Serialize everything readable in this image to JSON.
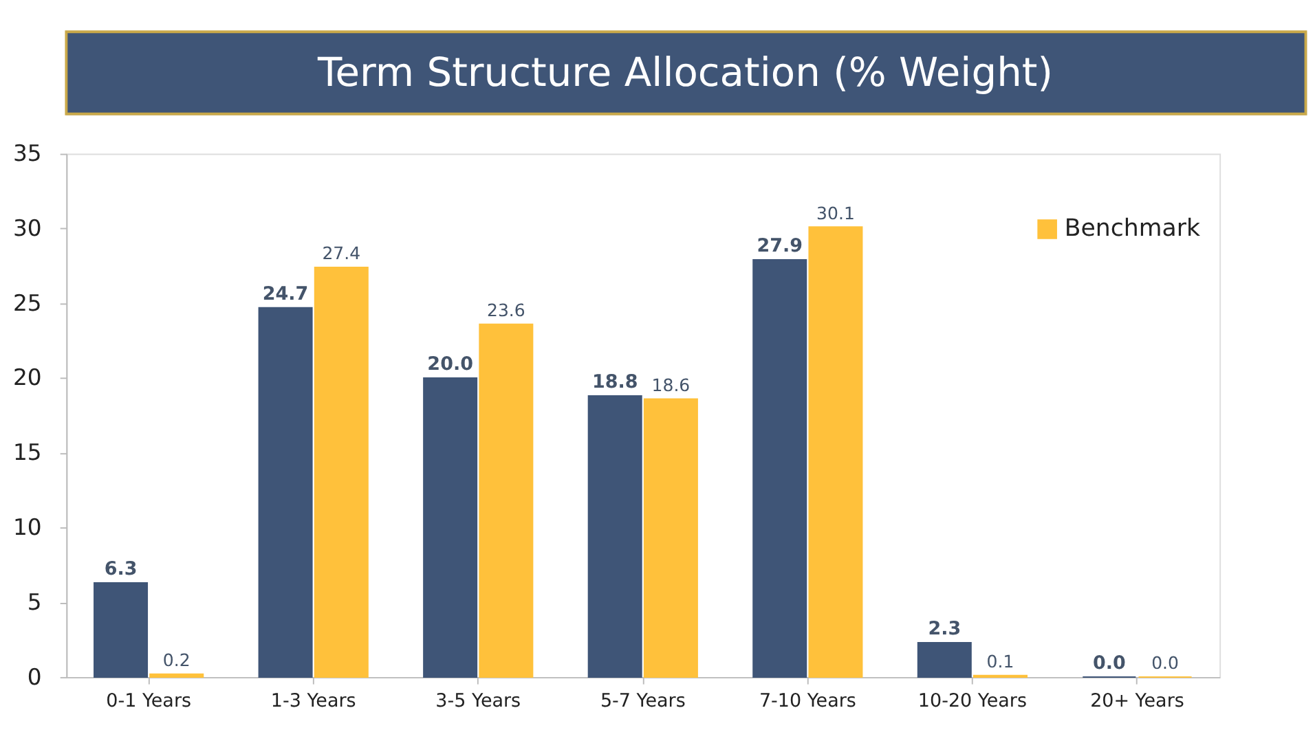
{
  "chart_data": {
    "type": "bar",
    "title": "Term Structure Allocation (% Weight)",
    "categories": [
      "0-1 Years",
      "1-3 Years",
      "3-5 Years",
      "5-7 Years",
      "7-10 Years",
      "10-20 Years",
      "20+ Years"
    ],
    "series": [
      {
        "color": "#3f5577",
        "values": [
          6.3,
          24.7,
          20.0,
          18.8,
          27.9,
          2.3,
          0.0
        ],
        "value_labels": [
          "6.3",
          "24.7",
          "20.0",
          "18.8",
          "27.9",
          "2.3",
          "0.0"
        ]
      },
      {
        "name": "Benchmark",
        "color": "#ffc13b",
        "values": [
          0.2,
          27.4,
          23.6,
          18.6,
          30.1,
          0.1,
          0.0
        ],
        "value_labels": [
          "0.2",
          "27.4",
          "23.6",
          "18.6",
          "30.1",
          "0.1",
          "0.0"
        ]
      }
    ],
    "ylim": [
      0,
      35
    ],
    "yticks": [
      0,
      5,
      10,
      15,
      20,
      25,
      30,
      35
    ],
    "grid": false,
    "legend": "top right"
  }
}
